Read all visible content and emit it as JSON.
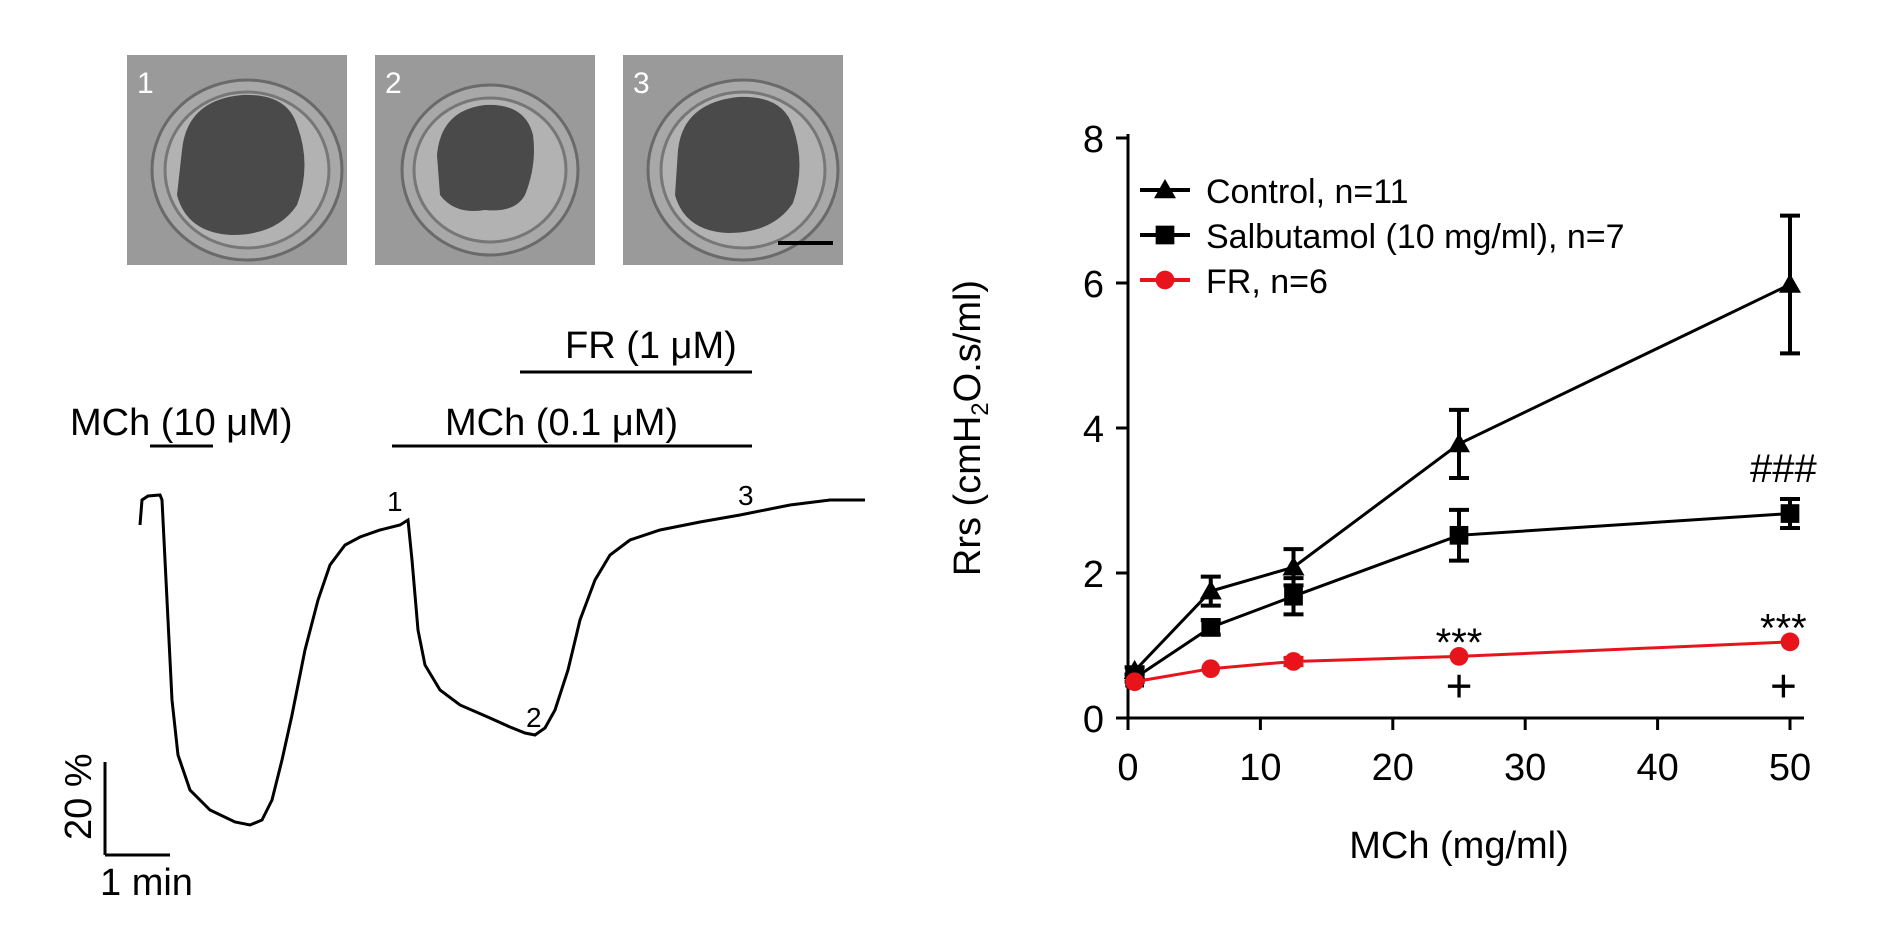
{
  "micrographs": [
    {
      "label": "1"
    },
    {
      "label": "2"
    },
    {
      "label": "3"
    }
  ],
  "left_trace": {
    "bars": {
      "mch_high": "MCh (10 μM)",
      "mch_low": "MCh (0.1 μM)",
      "fr": "FR (1 μM)"
    },
    "trace_markers": [
      "1",
      "2",
      "3"
    ],
    "scale_y": "20 %",
    "scale_x": "1 min"
  },
  "chart_data": {
    "type": "line",
    "title": "",
    "xlabel": "MCh (mg/ml)",
    "ylabel": "Rrs (cmH2O.s/ml)",
    "xlim": [
      0,
      50
    ],
    "ylim": [
      0,
      8
    ],
    "xticks": [
      "0",
      "10",
      "20",
      "30",
      "40",
      "50"
    ],
    "yticks": [
      "0",
      "2",
      "4",
      "6",
      "8"
    ],
    "legend_position": "top-left",
    "series": [
      {
        "name": "Control, n=11",
        "color": "#000000",
        "marker": "triangle",
        "x": [
          0.5,
          6.25,
          12.5,
          25,
          50
        ],
        "y": [
          0.65,
          1.75,
          2.08,
          3.78,
          5.98
        ],
        "err": [
          0.05,
          0.2,
          0.25,
          0.47,
          0.95
        ]
      },
      {
        "name": "Salbutamol (10 mg/ml), n=7",
        "color": "#000000",
        "marker": "square",
        "x": [
          0.5,
          6.25,
          12.5,
          25,
          50
        ],
        "y": [
          0.55,
          1.25,
          1.68,
          2.52,
          2.82
        ],
        "err": [
          0.05,
          0.1,
          0.25,
          0.35,
          0.2
        ]
      },
      {
        "name": "FR, n=6",
        "color": "#e8141b",
        "marker": "circle",
        "x": [
          0.5,
          6.25,
          12.5,
          25,
          50
        ],
        "y": [
          0.5,
          0.68,
          0.78,
          0.85,
          1.05
        ],
        "err": [
          0.02,
          0.03,
          0.05,
          0.03,
          0.03
        ]
      }
    ],
    "annotations": [
      {
        "text": "###",
        "x": 49.5,
        "y": 3.45
      },
      {
        "text": "***",
        "x": 25,
        "y": 1.05
      },
      {
        "text": "***",
        "x": 49.5,
        "y": 1.25
      },
      {
        "text": "+",
        "x": 25,
        "y": 0.42
      },
      {
        "text": "+",
        "x": 49.5,
        "y": 0.42
      }
    ]
  }
}
